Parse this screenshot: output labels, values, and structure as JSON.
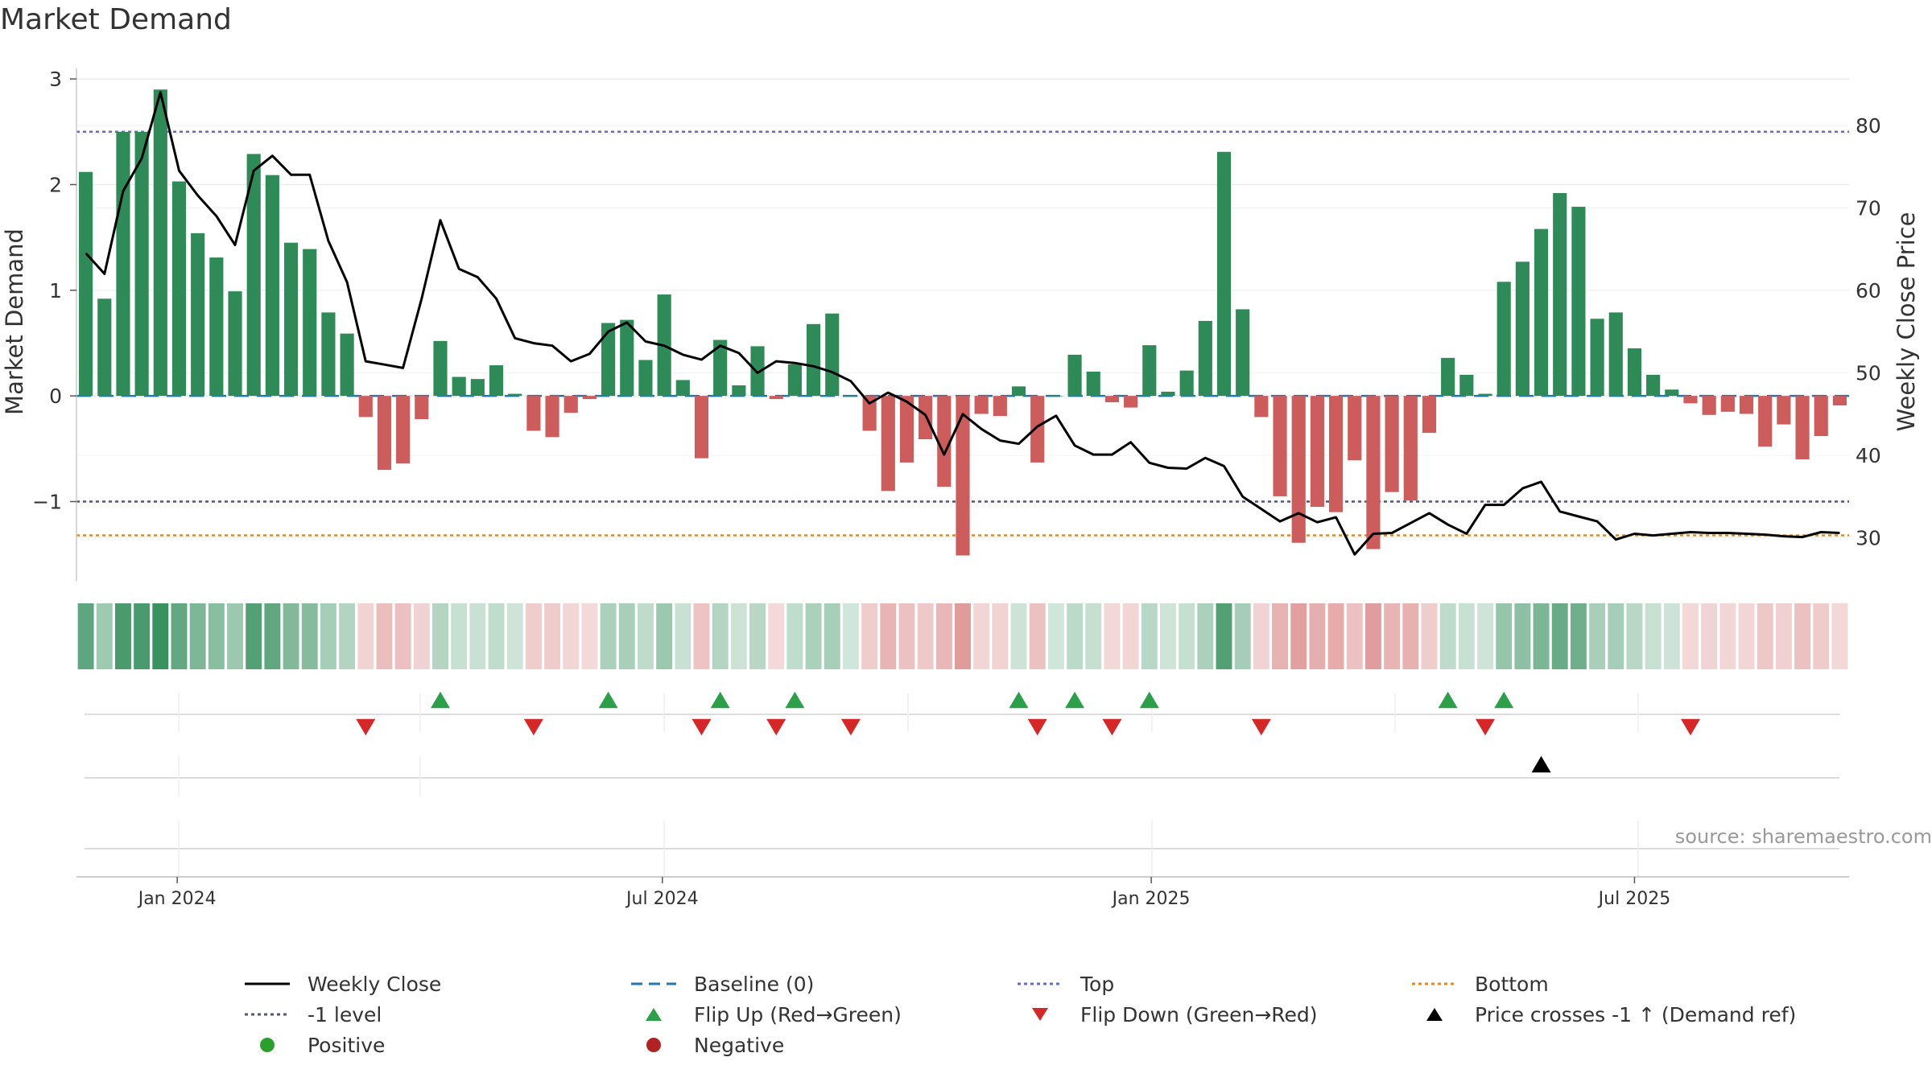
{
  "title": "Market Demand",
  "source_note": "source: sharemaestro.com",
  "colors": {
    "positive": "#2e8b57",
    "negative": "#cd5c5c",
    "close": "#000000",
    "baseline": "#1f77b4",
    "top": "#6a6acd",
    "bottom": "#e08a1e",
    "minus1": "#555577",
    "flip_up": "#2ca049",
    "flip_down": "#d62728",
    "cross": "#000000",
    "dot_pos": "#2ca02c",
    "dot_neg": "#b22222"
  },
  "chart_data": {
    "type": "bar",
    "ylabel": "Market Demand",
    "y2label": "Weekly Close Price",
    "ylim": [
      -1.75,
      3.1
    ],
    "y2lim": [
      24.8,
      86.9
    ],
    "yticks": [
      3,
      2,
      1,
      0,
      -1
    ],
    "ytick_labels": [
      "3",
      "2",
      "1",
      "0",
      "−1"
    ],
    "y2ticks": [
      80,
      70,
      60,
      50,
      40,
      30
    ],
    "xtick_labels": [
      "Jan 2024",
      "Jul 2024",
      "Jan 2025",
      "Jul 2025"
    ],
    "xtick_positions": [
      5.4,
      31.4,
      57.6,
      83.5
    ],
    "levels": {
      "top": 2.5,
      "minus1": -1,
      "bottom": -1.32,
      "baseline": 0
    },
    "demand": [
      2.12,
      0.92,
      2.5,
      2.5,
      2.9,
      2.03,
      1.54,
      1.31,
      0.99,
      2.29,
      2.09,
      1.45,
      1.39,
      0.79,
      0.59,
      -0.2,
      -0.7,
      -0.64,
      -0.22,
      0.52,
      0.18,
      0.16,
      0.29,
      0.02,
      -0.33,
      -0.39,
      -0.16,
      -0.03,
      0.69,
      0.72,
      0.34,
      0.96,
      0.15,
      -0.59,
      0.53,
      0.1,
      0.47,
      -0.03,
      0.3,
      0.68,
      0.78,
      0.0,
      -0.33,
      -0.9,
      -0.63,
      -0.41,
      -0.86,
      -1.51,
      -0.17,
      -0.19,
      0.09,
      -0.63,
      0.0,
      0.39,
      0.23,
      -0.06,
      -0.11,
      0.48,
      0.04,
      0.24,
      0.71,
      2.31,
      0.82,
      -0.2,
      -0.95,
      -1.39,
      -1.05,
      -1.1,
      -0.61,
      -1.45,
      -0.91,
      -0.99,
      -0.35,
      0.36,
      0.2,
      0.02,
      1.08,
      1.27,
      1.58,
      1.92,
      1.79,
      0.73,
      0.79,
      0.45,
      0.2,
      0.06,
      -0.07,
      -0.18,
      -0.15,
      -0.17,
      -0.48,
      -0.27,
      -0.6,
      -0.38,
      -0.09
    ],
    "weekly_close": [
      64.5,
      62.0,
      72.0,
      76.0,
      84.0,
      74.5,
      71.5,
      69.0,
      65.5,
      74.5,
      76.3,
      74.0,
      74.0,
      66.0,
      61.0,
      51.4,
      51.0,
      50.6,
      59.0,
      68.5,
      62.6,
      61.6,
      59.0,
      54.2,
      53.6,
      53.3,
      51.4,
      52.3,
      55.0,
      56.1,
      53.8,
      53.3,
      52.2,
      51.6,
      53.3,
      52.4,
      50.0,
      51.4,
      51.2,
      50.8,
      50.1,
      49.0,
      46.3,
      47.6,
      46.5,
      44.9,
      40.1,
      45.0,
      43.2,
      41.8,
      41.4,
      43.5,
      44.8,
      41.2,
      40.1,
      40.1,
      41.6,
      39.1,
      38.5,
      38.4,
      39.7,
      38.7,
      35.0,
      33.5,
      32.0,
      33.0,
      31.9,
      32.5,
      28.0,
      30.5,
      30.6,
      31.8,
      33.0,
      31.6,
      30.5,
      34.0,
      34.0,
      36.0,
      36.8,
      33.2,
      32.6,
      32.0,
      29.8,
      30.5,
      30.3,
      30.5,
      30.7,
      30.6,
      30.6,
      30.5,
      30.4,
      30.2,
      30.1,
      30.7,
      30.6
    ],
    "flip_up_weeks": [
      19,
      28,
      34,
      38,
      50,
      53,
      57,
      73,
      76
    ],
    "flip_down_weeks": [
      15,
      24,
      33,
      37,
      41,
      51,
      55,
      63,
      75,
      86
    ],
    "price_cross_weeks": [
      78
    ]
  },
  "legend": [
    {
      "label": "Weekly Close",
      "symbol": "line-solid"
    },
    {
      "label": "Baseline (0)",
      "symbol": "line-dashed"
    },
    {
      "label": "Top",
      "symbol": "line-dotted-top"
    },
    {
      "label": "Bottom",
      "symbol": "line-dotted-bottom"
    },
    {
      "label": "-1 level",
      "symbol": "line-dotted-minus1"
    },
    {
      "label": "Flip Up (Red→Green)",
      "symbol": "triangle-up-green"
    },
    {
      "label": "Flip Down (Green→Red)",
      "symbol": "triangle-down-red"
    },
    {
      "label": "Price crosses -1 ↑ (Demand ref)",
      "symbol": "triangle-up-black"
    },
    {
      "label": "Positive",
      "symbol": "dot-green"
    },
    {
      "label": "Negative",
      "symbol": "dot-red"
    }
  ]
}
